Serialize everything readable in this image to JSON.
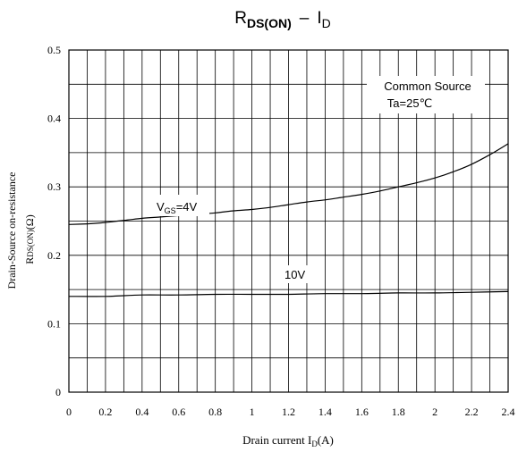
{
  "chart_data": {
    "type": "line",
    "title": {
      "left_main": "R",
      "left_sub": "DS(ON)",
      "dash": "–",
      "right_main": "I",
      "right_sub": "D"
    },
    "xlabel": {
      "main": "Drain current  I",
      "sub": "D",
      "unit": "(A)"
    },
    "ylabel": {
      "line1": "Drain-Source on-resistance",
      "line2_main": "R",
      "line2_sub": "DS(ON)",
      "line2_unit": "(Ω)"
    },
    "xlim": [
      0,
      2.4
    ],
    "ylim": [
      0,
      0.5
    ],
    "x_ticks": [
      "0",
      "0.2",
      "0.4",
      "0.6",
      "0.8",
      "1",
      "1.2",
      "1.4",
      "1.6",
      "1.8",
      "2",
      "2.2",
      "2.4"
    ],
    "y_ticks": [
      "0",
      "0.1",
      "0.2",
      "0.3",
      "0.4",
      "0.5"
    ],
    "x_minor_step": 0.1,
    "y_minor_step": 0.05,
    "grid": true,
    "annotations": {
      "condition_line1": "Common Source",
      "condition_line2": "Ta=25℃",
      "vgs4_main": "V",
      "vgs4_sub": "GS",
      "vgs4_value": "=4V",
      "vgs10": "10V"
    },
    "series": [
      {
        "name": "VGS=4V",
        "x": [
          0,
          0.1,
          0.2,
          0.3,
          0.4,
          0.5,
          0.6,
          0.7,
          0.8,
          0.9,
          1.0,
          1.1,
          1.2,
          1.3,
          1.4,
          1.5,
          1.6,
          1.7,
          1.8,
          1.9,
          2.0,
          2.1,
          2.2,
          2.3,
          2.4
        ],
        "y": [
          0.245,
          0.246,
          0.248,
          0.251,
          0.254,
          0.256,
          0.258,
          0.26,
          0.262,
          0.265,
          0.267,
          0.27,
          0.274,
          0.278,
          0.281,
          0.285,
          0.289,
          0.294,
          0.3,
          0.306,
          0.313,
          0.322,
          0.333,
          0.347,
          0.363
        ]
      },
      {
        "name": "10V",
        "x": [
          0,
          0.2,
          0.4,
          0.6,
          0.8,
          1.0,
          1.2,
          1.4,
          1.6,
          1.8,
          2.0,
          2.2,
          2.4
        ],
        "y": [
          0.14,
          0.14,
          0.142,
          0.142,
          0.143,
          0.143,
          0.143,
          0.144,
          0.144,
          0.145,
          0.145,
          0.146,
          0.147
        ]
      }
    ]
  }
}
